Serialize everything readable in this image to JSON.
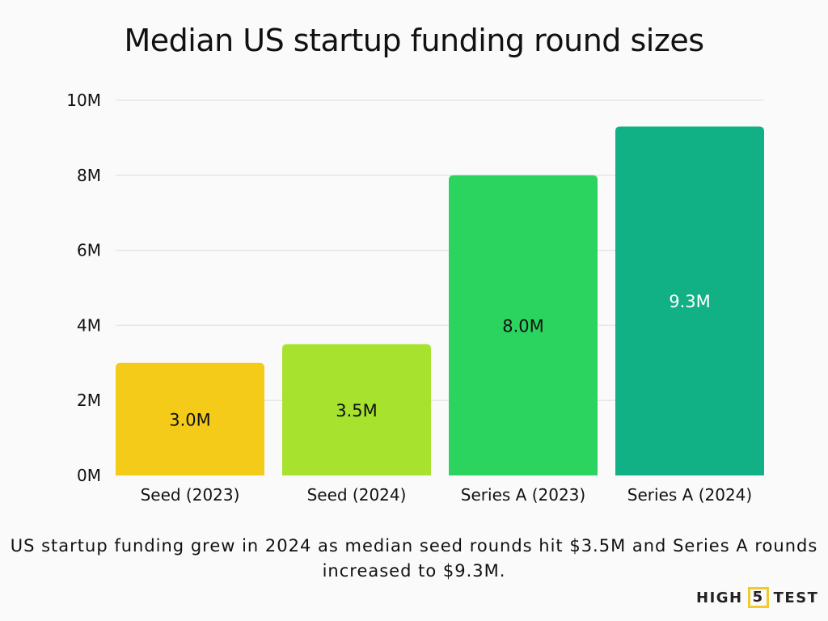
{
  "chart_data": {
    "type": "bar",
    "title": "Median US startup funding round sizes",
    "categories": [
      "Seed (2023)",
      "Seed (2024)",
      "Series A (2023)",
      "Series A (2024)"
    ],
    "values": [
      3.0,
      3.5,
      8.0,
      9.3
    ],
    "data_labels": [
      "3.0M",
      "3.5M",
      "8.0M",
      "9.3M"
    ],
    "colors": [
      "#f5cb1a",
      "#a6e22e",
      "#2ad45e",
      "#12b085"
    ],
    "label_colors": [
      "#111111",
      "#111111",
      "#111111",
      "#ffffff"
    ],
    "yticks": [
      0,
      2,
      4,
      6,
      8,
      10
    ],
    "ytick_labels": [
      "0M",
      "2M",
      "4M",
      "6M",
      "8M",
      "10M"
    ],
    "ylim": [
      0,
      10
    ],
    "grid": true,
    "xlabel": "",
    "ylabel": ""
  },
  "caption": "US startup funding grew in 2024 as median seed rounds hit $3.5M and Series A rounds increased to $9.3M.",
  "logo": {
    "left": "HIGH",
    "mid": "5",
    "right": "TEST"
  }
}
